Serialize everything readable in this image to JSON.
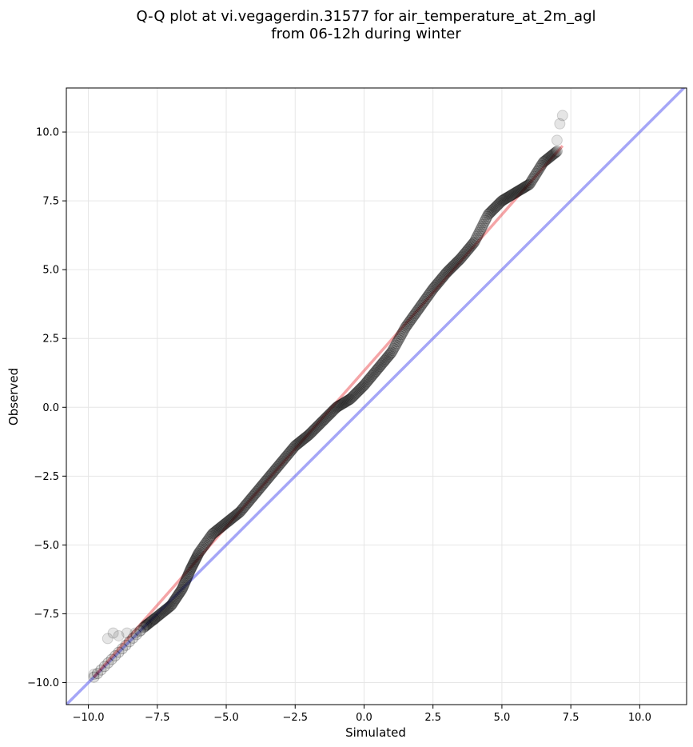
{
  "title_line1": "Q-Q plot at vi.vegagerdin.31577 for air_temperature_at_2m_agl",
  "title_line2": "from 06-12h during winter",
  "colors": {
    "points": "#000000",
    "fit_line": "#e8383b",
    "identity_line": "#5b5cf0",
    "grid": "#e6e6e6"
  },
  "chart_data": {
    "type": "scatter",
    "xlabel": "Simulated",
    "ylabel": "Observed",
    "xlim": [
      -10.8,
      11.7
    ],
    "ylim": [
      -10.8,
      11.6
    ],
    "grid": true,
    "xticks": [
      -10.0,
      -7.5,
      -5.0,
      -2.5,
      0.0,
      2.5,
      5.0,
      7.5,
      10.0
    ],
    "yticks": [
      -10.0,
      -7.5,
      -5.0,
      -2.5,
      0.0,
      2.5,
      5.0,
      7.5,
      10.0
    ],
    "xtick_labels": [
      "−10.0",
      "−7.5",
      "−5.0",
      "−2.5",
      "0.0",
      "2.5",
      "5.0",
      "7.5",
      "10.0"
    ],
    "ytick_labels": [
      "−10.0",
      "−7.5",
      "−5.0",
      "−2.5",
      "0.0",
      "2.5",
      "5.0",
      "7.5",
      "10.0"
    ],
    "fit_line": {
      "x": [
        -9.8,
        7.2
      ],
      "y": [
        -9.8,
        9.5
      ]
    },
    "identity_line": {
      "x": [
        -10.8,
        11.7
      ],
      "y": [
        -10.8,
        11.7
      ]
    },
    "quantile_curve": {
      "x": [
        -9.8,
        -8.0,
        -7.5,
        -7.0,
        -6.6,
        -6.3,
        -6.0,
        -5.5,
        -5.0,
        -4.5,
        -4.0,
        -3.5,
        -3.0,
        -2.5,
        -2.0,
        -1.5,
        -1.0,
        -0.5,
        0.0,
        0.5,
        1.0,
        1.5,
        2.0,
        2.5,
        3.0,
        3.5,
        4.0,
        4.5,
        5.0,
        5.5,
        6.0,
        6.5,
        7.0
      ],
      "y": [
        -9.8,
        -8.0,
        -7.6,
        -7.2,
        -6.6,
        -5.9,
        -5.3,
        -4.6,
        -4.2,
        -3.8,
        -3.2,
        -2.6,
        -2.0,
        -1.4,
        -1.0,
        -0.5,
        0.0,
        0.3,
        0.8,
        1.4,
        2.0,
        2.9,
        3.6,
        4.3,
        4.9,
        5.4,
        6.0,
        7.0,
        7.5,
        7.8,
        8.1,
        8.9,
        9.3
      ]
    },
    "outliers": {
      "x": [
        -9.8,
        -9.3,
        -9.1,
        -8.9,
        -8.6,
        -8.3,
        -8.1,
        -7.9,
        -7.6,
        7.0,
        7.1,
        7.2
      ],
      "y": [
        -9.7,
        -8.4,
        -8.2,
        -8.3,
        -8.2,
        -8.2,
        -8.1,
        -7.9,
        -7.7,
        9.7,
        10.3,
        10.6
      ]
    }
  }
}
